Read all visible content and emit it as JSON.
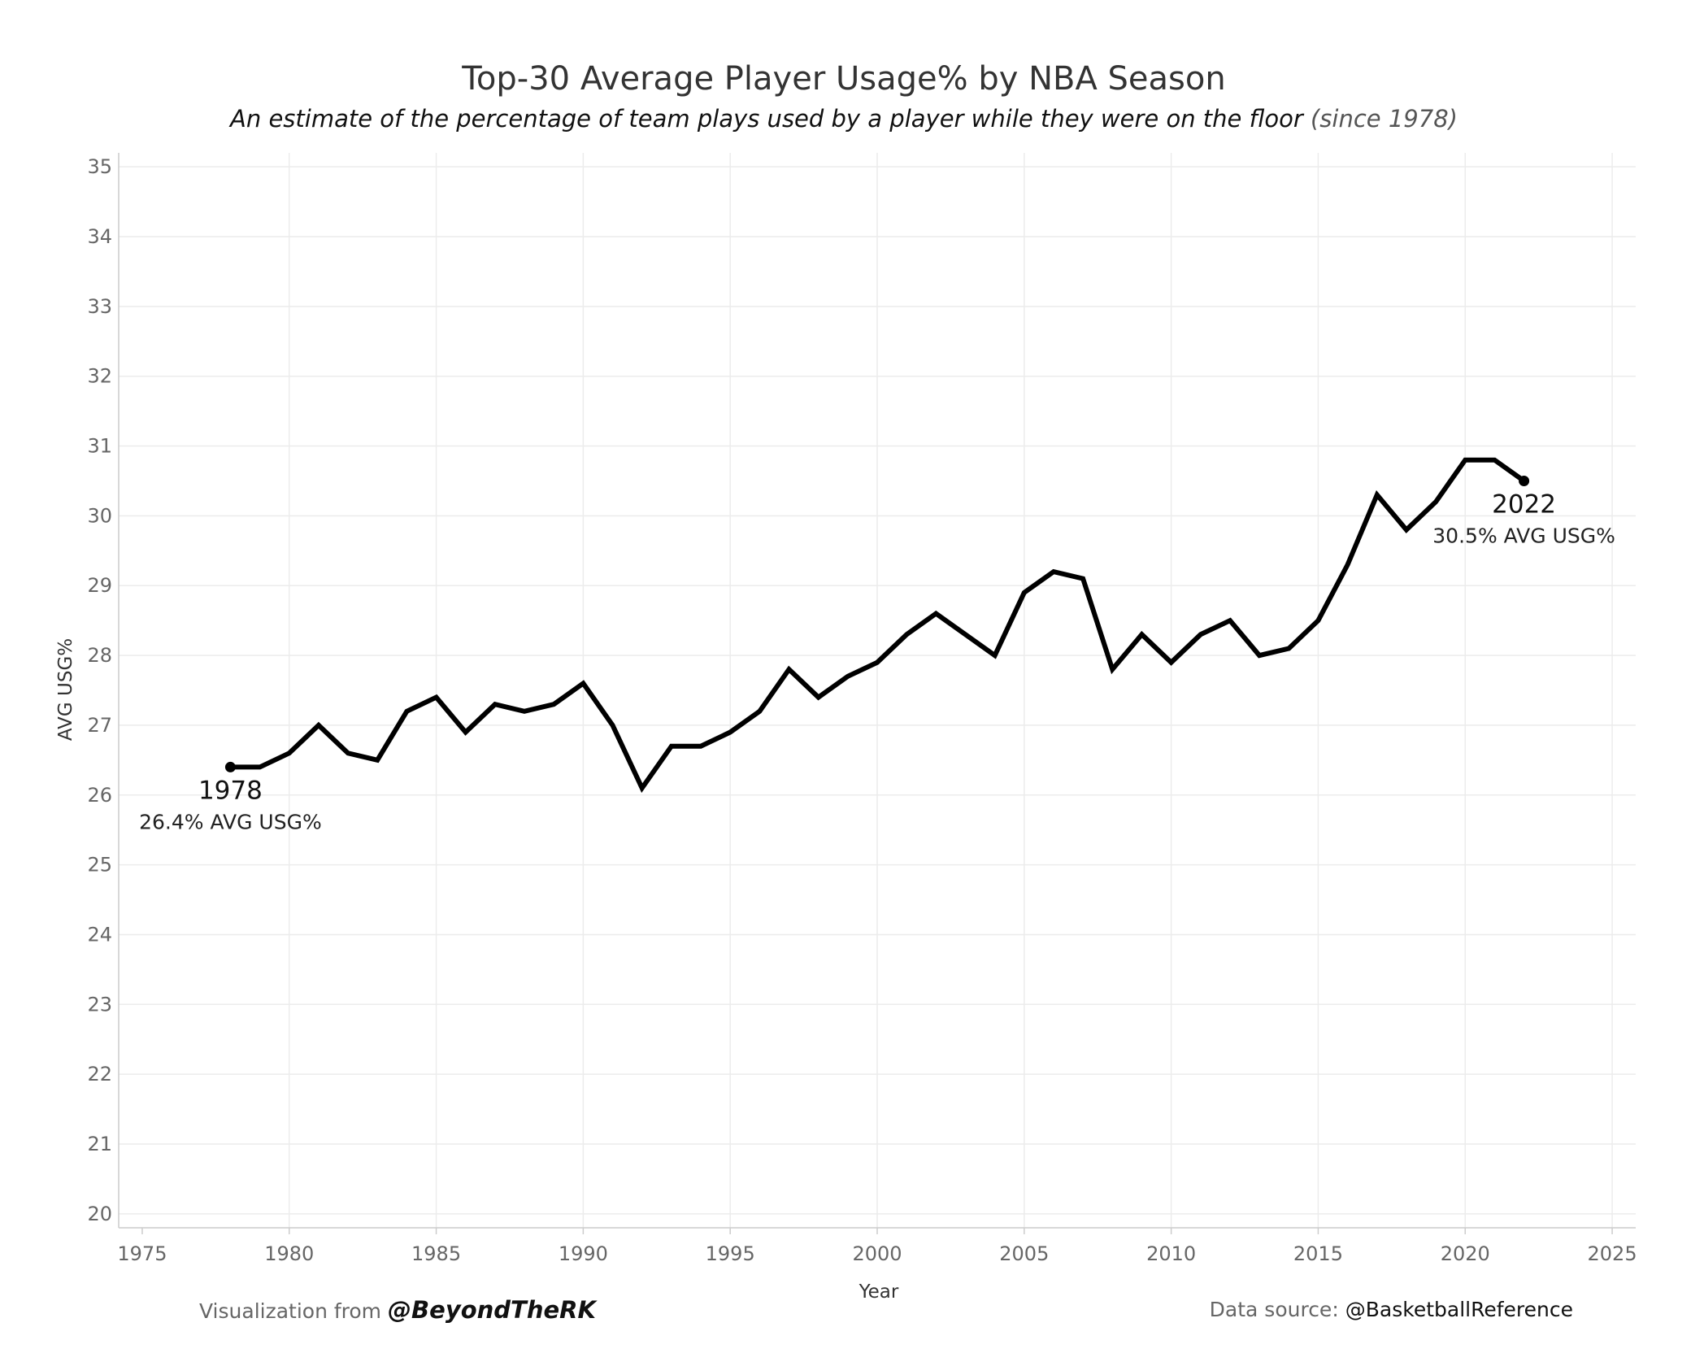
{
  "colors": {
    "line": "#000000",
    "grid": "#ececec",
    "axis": "#cccccc",
    "tick_text": "#666666",
    "background": "#ffffff"
  },
  "footer": {
    "left_prefix": "Visualization from",
    "left_credit": "@BeyondTheRK",
    "right_prefix": "Data source:",
    "right_credit": "@BasketballReference"
  },
  "chart_data": {
    "type": "line",
    "title": "Top-30 Average Player Usage% by NBA Season",
    "subtitle_main": "An estimate of the percentage of team plays used by a player while they were on the floor",
    "subtitle_paren": "(since 1978)",
    "xlabel": "Year",
    "ylabel": "AVG USG%",
    "xlim": [
      1974.2,
      2025.8
    ],
    "ylim": [
      19.8,
      35.2
    ],
    "x_ticks": [
      1975,
      1980,
      1985,
      1990,
      1995,
      2000,
      2005,
      2010,
      2015,
      2020,
      2025
    ],
    "y_ticks": [
      20,
      21,
      22,
      23,
      24,
      25,
      26,
      27,
      28,
      29,
      30,
      31,
      32,
      33,
      34,
      35
    ],
    "grid": true,
    "series": [
      {
        "name": "AVG USG%",
        "x": [
          1978,
          1979,
          1980,
          1981,
          1982,
          1983,
          1984,
          1985,
          1986,
          1987,
          1988,
          1989,
          1990,
          1991,
          1992,
          1993,
          1994,
          1995,
          1996,
          1997,
          1998,
          1999,
          2000,
          2001,
          2002,
          2003,
          2004,
          2005,
          2006,
          2007,
          2008,
          2009,
          2010,
          2011,
          2012,
          2013,
          2014,
          2015,
          2016,
          2017,
          2018,
          2019,
          2020,
          2021,
          2022
        ],
        "y": [
          26.4,
          26.4,
          26.6,
          27.0,
          26.6,
          26.5,
          27.2,
          27.4,
          26.9,
          27.3,
          27.2,
          27.3,
          27.6,
          27.0,
          26.1,
          26.7,
          26.7,
          26.9,
          27.2,
          27.8,
          27.4,
          27.7,
          27.9,
          28.3,
          28.6,
          28.3,
          28.0,
          28.9,
          29.2,
          29.1,
          27.8,
          28.3,
          27.9,
          28.3,
          28.5,
          28.0,
          28.1,
          28.5,
          29.3,
          30.3,
          29.8,
          30.2,
          30.8,
          30.8,
          30.5
        ]
      }
    ],
    "annotations": [
      {
        "year_label": "1978",
        "value_label": "26.4% AVG USG%"
      },
      {
        "year_label": "2022",
        "value_label": "30.5% AVG USG%"
      }
    ]
  }
}
